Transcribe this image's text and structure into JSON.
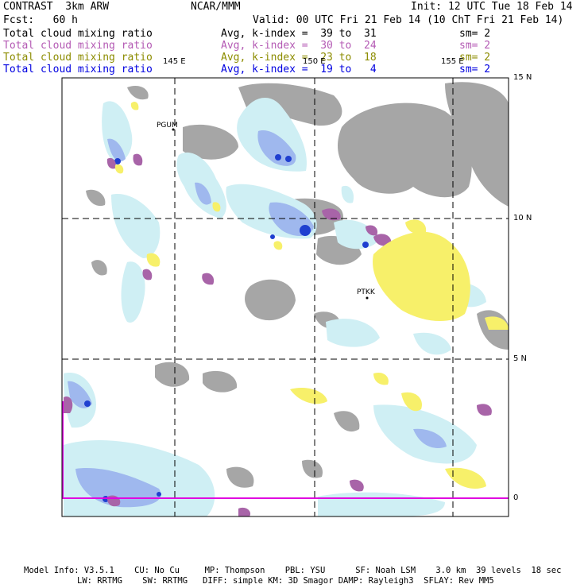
{
  "header": {
    "model": "CONTRAST  3km ARW",
    "center": "NCAR/MMM",
    "init": "Init: 12 UTC Tue 18 Feb 14",
    "fcst": "Fcst:   60 h",
    "valid": "Valid: 00 UTC Fri 21 Feb 14 (10 ChT Fri 21 Feb 14)"
  },
  "legend": [
    {
      "field": "Total cloud mixing ratio",
      "stats": "Avg, k-index =  39 to  31",
      "sm": "sm= 2",
      "color": "#000000"
    },
    {
      "field": "Total cloud mixing ratio",
      "stats": "Avg, k-index =  30 to  24",
      "sm": "sm= 2",
      "color": "#b45ab4"
    },
    {
      "field": "Total cloud mixing ratio",
      "stats": "Avg, k-index =  23 to  18",
      "sm": "sm= 2",
      "color": "#8c8c00"
    },
    {
      "field": "Total cloud mixing ratio",
      "stats": "Avg, k-index =  19 to   4",
      "sm": "sm= 2",
      "color": "#0000e0"
    }
  ],
  "map": {
    "lon_labels": [
      "145 E",
      "150 E",
      "155 E"
    ],
    "lat_labels": [
      "15 N",
      "10 N",
      "5 N",
      "0"
    ],
    "stations": [
      "PGUM",
      "PTKK"
    ]
  },
  "footer": {
    "line1": "Model Info: V3.5.1    CU: No Cu     MP: Thompson    PBL: YSU      SF: Noah LSM    3.0 km  39 levels  18 sec",
    "line2": "LW: RRTMG    SW: RRTMG   DIFF: simple KM: 3D Smagor DAMP: Rayleigh3  SFLAY: Rev MM5"
  }
}
